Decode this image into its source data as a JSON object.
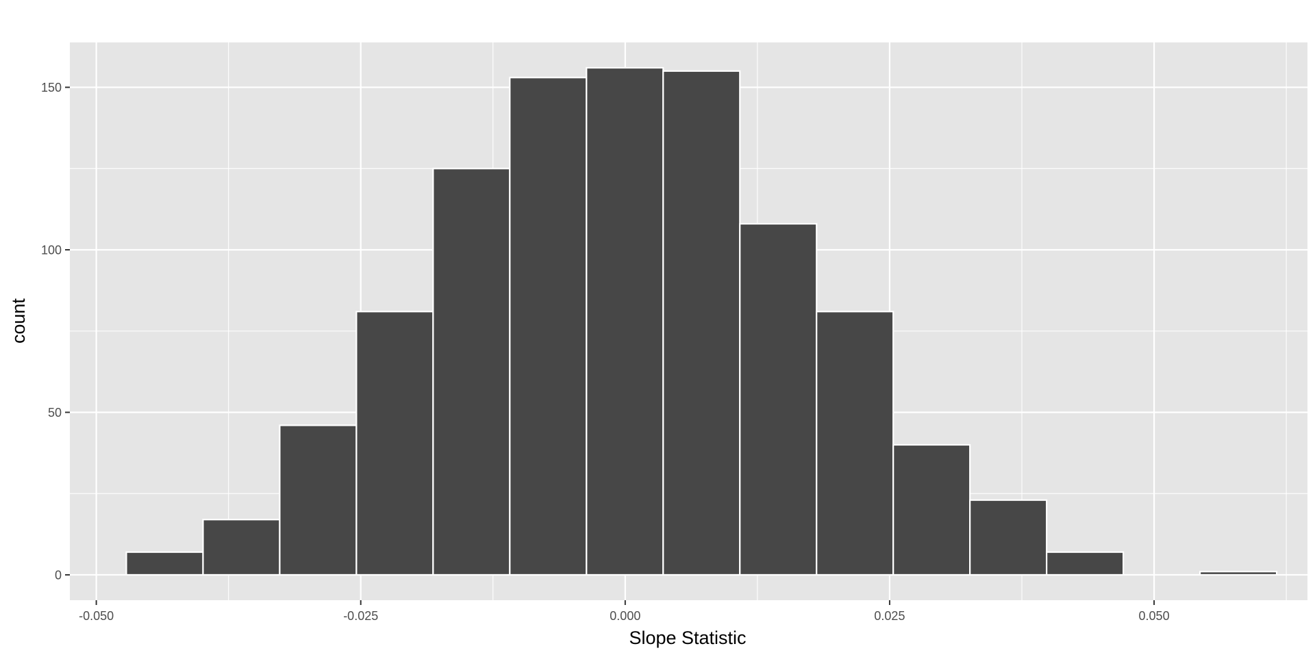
{
  "chart_data": {
    "type": "bar",
    "subtype": "histogram",
    "title": "",
    "xlabel": "Slope Statistic",
    "ylabel": "count",
    "xlim": [
      -0.0525,
      0.0645
    ],
    "ylim": [
      -7.8,
      163.8
    ],
    "x_ticks": [
      -0.05,
      -0.025,
      0.0,
      0.025,
      0.05
    ],
    "x_tick_labels": [
      "-0.050",
      "-0.025",
      "0.000",
      "0.025",
      "0.050"
    ],
    "y_ticks": [
      0,
      50,
      100,
      150
    ],
    "y_tick_labels": [
      "0",
      "50",
      "100",
      "150"
    ],
    "grid": true,
    "legend": "none",
    "bin_width": 0.00725,
    "bins": [
      {
        "x_start": -0.04716,
        "x_end": -0.03991,
        "count": 7
      },
      {
        "x_start": -0.03991,
        "x_end": -0.03266,
        "count": 17
      },
      {
        "x_start": -0.03266,
        "x_end": -0.02541,
        "count": 46
      },
      {
        "x_start": -0.02541,
        "x_end": -0.01816,
        "count": 81
      },
      {
        "x_start": -0.01816,
        "x_end": -0.01091,
        "count": 125
      },
      {
        "x_start": -0.01091,
        "x_end": -0.00366,
        "count": 153
      },
      {
        "x_start": -0.00366,
        "x_end": 0.00359,
        "count": 156
      },
      {
        "x_start": 0.00359,
        "x_end": 0.01084,
        "count": 155
      },
      {
        "x_start": 0.01084,
        "x_end": 0.01809,
        "count": 108
      },
      {
        "x_start": 0.01809,
        "x_end": 0.02534,
        "count": 81
      },
      {
        "x_start": 0.02534,
        "x_end": 0.03259,
        "count": 40
      },
      {
        "x_start": 0.03259,
        "x_end": 0.03984,
        "count": 23
      },
      {
        "x_start": 0.03984,
        "x_end": 0.04709,
        "count": 7
      },
      {
        "x_start": 0.04709,
        "x_end": 0.05434,
        "count": 0
      },
      {
        "x_start": 0.05434,
        "x_end": 0.06159,
        "count": 1
      }
    ],
    "colors": {
      "panel_background": "#e5e5e5",
      "grid": "#ffffff",
      "bar_fill": "#474747",
      "bar_outline": "#ffffff",
      "tick_label": "#4d4d4d",
      "tick_mark": "#333333",
      "axis_title": "#000000"
    }
  }
}
